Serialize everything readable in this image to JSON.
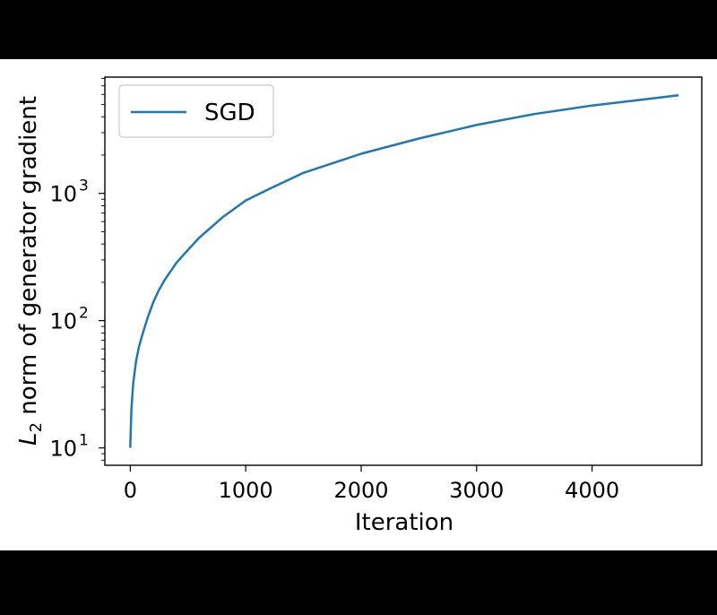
{
  "chart_data": {
    "type": "line",
    "title": "",
    "xlabel": "Iteration",
    "ylabel_main": "L",
    "ylabel_sub": "2",
    "ylabel_rest": " norm of generator gradient",
    "yscale": "log",
    "xlim": [
      -220,
      4950
    ],
    "ylim": [
      7.3,
      8200
    ],
    "grid": false,
    "legend_position": "top-left",
    "x_ticks": [
      0,
      1000,
      2000,
      3000,
      4000
    ],
    "x_tick_labels": [
      "0",
      "1000",
      "2000",
      "3000",
      "4000"
    ],
    "y_ticks": [
      10,
      100,
      1000
    ],
    "y_tick_base": "10",
    "y_tick_exponents": [
      "1",
      "2",
      "3"
    ],
    "series": [
      {
        "name": "SGD",
        "color": "#1f77b4",
        "x": [
          0,
          10,
          25,
          50,
          75,
          100,
          150,
          200,
          250,
          300,
          400,
          500,
          600,
          800,
          1000,
          1200,
          1500,
          2000,
          2500,
          3000,
          3500,
          4000,
          4500,
          4750
        ],
        "y": [
          10,
          20,
          32,
          48,
          62,
          75,
          105,
          140,
          175,
          210,
          285,
          360,
          450,
          650,
          880,
          1080,
          1450,
          2050,
          2700,
          3450,
          4200,
          4900,
          5550,
          5900
        ]
      }
    ]
  }
}
